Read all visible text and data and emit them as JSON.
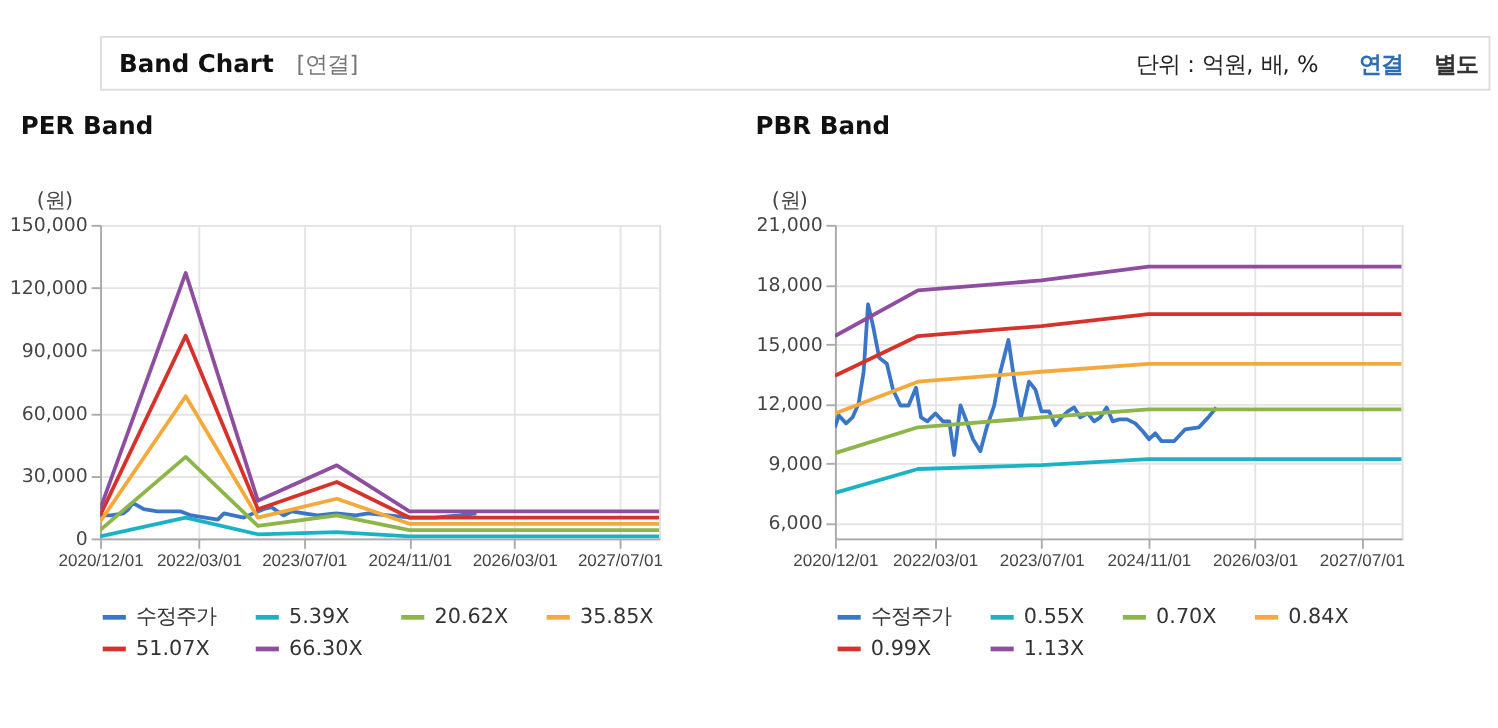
{
  "chart_data": [
    {
      "type": "line",
      "title": "PER Band",
      "ylabel": "(원)",
      "annotations": [
        "Band Chart",
        "[연결]",
        "단위 : 억원, 배, %",
        "연결",
        "별도"
      ],
      "xlim": [
        "2020-12-01",
        "2028-01-01"
      ],
      "xticks": [
        {
          "value": "2020-12-01",
          "label": "2020/12/01"
        },
        {
          "value": "2022-03-01",
          "label": "2022/03/01"
        },
        {
          "value": "2023-07-01",
          "label": "2023/07/01"
        },
        {
          "value": "2024-11-01",
          "label": "2024/11/01"
        },
        {
          "value": "2026-03-01",
          "label": "2026/03/01"
        },
        {
          "value": "2027-07-01",
          "label": "2027/07/01"
        }
      ],
      "ylim": [
        0,
        150000
      ],
      "yticks": [
        0,
        {
          "value": 30000,
          "label": "30,000"
        },
        {
          "value": 60000,
          "label": "60,000"
        },
        {
          "value": 90000,
          "label": "90,000"
        },
        {
          "value": 120000,
          "label": "120,000"
        },
        {
          "value": 150000,
          "label": "150,000"
        }
      ],
      "grid": true,
      "legend": "bottom",
      "line_style": "solid",
      "series": [
        {
          "name": "수정주가",
          "color": "#3a76c8",
          "x": [
            "2020-12-01",
            "2021-01-21",
            "2021-03-19",
            "2021-04-11",
            "2021-05-01",
            "2021-06-21",
            "2021-08-23",
            "2021-12-06",
            "2022-01-27",
            "2022-05-29",
            "2022-06-27",
            "2022-09-26",
            "2022-12-26",
            "2023-02-01",
            "2023-03-30",
            "2023-05-06",
            "2023-07-02",
            "2023-09-03",
            "2023-11-28",
            "2024-02-27",
            "2024-04-24",
            "2024-07-27",
            "2024-11-04",
            "2024-12-31",
            "2025-02-26",
            "2025-06-20",
            "2025-09-07"
          ],
          "values": [
            11000,
            11000,
            12000,
            14000,
            17000,
            14000,
            13000,
            13000,
            11000,
            9000,
            12000,
            10000,
            14000,
            15000,
            11000,
            13000,
            12000,
            11000,
            12000,
            11000,
            12000,
            11000,
            10000,
            10000,
            10000,
            11000,
            12000
          ]
        },
        {
          "name": "5.39X",
          "color": "#1bb3c4",
          "x": [
            "2020-12-01",
            "2022-01-01",
            "2022-12-01",
            "2023-12-01",
            "2024-11-01",
            "2028-01-01"
          ],
          "values": [
            1000,
            10000,
            2000,
            3000,
            1000,
            1000
          ]
        },
        {
          "name": "20.62X",
          "color": "#8db54a",
          "x": [
            "2020-12-01",
            "2022-01-01",
            "2022-12-01",
            "2023-12-01",
            "2024-11-01",
            "2028-01-01"
          ],
          "values": [
            4000,
            39000,
            6000,
            11000,
            4000,
            4000
          ]
        },
        {
          "name": "35.85X",
          "color": "#f5a93a",
          "x": [
            "2020-12-01",
            "2022-01-01",
            "2022-12-01",
            "2023-12-01",
            "2024-11-01",
            "2028-01-01"
          ],
          "values": [
            8000,
            68000,
            10000,
            19000,
            7000,
            7000
          ]
        },
        {
          "name": "51.07X",
          "color": "#d6322b",
          "x": [
            "2020-12-01",
            "2022-01-01",
            "2022-12-01",
            "2023-12-01",
            "2024-11-01",
            "2028-01-01"
          ],
          "values": [
            11000,
            97000,
            14000,
            27000,
            10000,
            10000
          ]
        },
        {
          "name": "66.30X",
          "color": "#8e4d9e",
          "x": [
            "2020-12-01",
            "2022-01-01",
            "2022-12-01",
            "2023-12-01",
            "2024-11-01",
            "2028-01-01"
          ],
          "values": [
            14000,
            127000,
            18000,
            35000,
            13000,
            13000
          ]
        }
      ]
    },
    {
      "type": "line",
      "title": "PBR Band",
      "ylabel": "(원)",
      "xlim": [
        "2020-12-01",
        "2028-01-01"
      ],
      "xticks": [
        {
          "value": "2020-12-01",
          "label": "2020/12/01"
        },
        {
          "value": "2022-03-01",
          "label": "2022/03/01"
        },
        {
          "value": "2023-07-01",
          "label": "2023/07/01"
        },
        {
          "value": "2024-11-01",
          "label": "2024/11/01"
        },
        {
          "value": "2026-03-01",
          "label": "2026/03/01"
        },
        {
          "value": "2027-07-01",
          "label": "2027/07/01"
        }
      ],
      "ylim": [
        5200,
        21000
      ],
      "yticks": [
        {
          "value": 6000,
          "label": "6,000"
        },
        {
          "value": 9000,
          "label": "9,000"
        },
        {
          "value": 12000,
          "label": "12,000"
        },
        {
          "value": 15000,
          "label": "15,000"
        },
        {
          "value": 18000,
          "label": "18,000"
        },
        {
          "value": 21000,
          "label": "21,000"
        }
      ],
      "grid": true,
      "legend": "bottom",
      "line_style": "solid",
      "series": [
        {
          "name": "수정주가",
          "color": "#3a76c8",
          "x": [
            "2020-12-01",
            "2020-12-18",
            "2021-01-21",
            "2021-02-19",
            "2021-03-19",
            "2021-04-11",
            "2021-05-01",
            "2021-05-24",
            "2021-06-21",
            "2021-07-26",
            "2021-08-23",
            "2021-09-26",
            "2021-11-02",
            "2021-12-06",
            "2021-12-29",
            "2022-01-27",
            "2022-03-05",
            "2022-04-08",
            "2022-05-07",
            "2022-05-29",
            "2022-06-27",
            "2022-07-25",
            "2022-08-23",
            "2022-09-26",
            "2022-10-25",
            "2022-11-28",
            "2022-12-26",
            "2023-02-01",
            "2023-03-02",
            "2023-03-30",
            "2023-05-06",
            "2023-06-04",
            "2023-07-02",
            "2023-08-06",
            "2023-09-03",
            "2023-10-02",
            "2023-10-30",
            "2023-11-28",
            "2023-12-26",
            "2024-01-29",
            "2024-02-27",
            "2024-03-26",
            "2024-04-24",
            "2024-05-22",
            "2024-06-20",
            "2024-07-27",
            "2024-09-02",
            "2024-10-06",
            "2024-11-04",
            "2024-12-02",
            "2024-12-31",
            "2025-02-26",
            "2025-04-18",
            "2025-06-20",
            "2025-08-01",
            "2025-09-07"
          ],
          "values": [
            10800,
            11400,
            11000,
            11300,
            12000,
            13600,
            17000,
            15900,
            14300,
            14000,
            12700,
            11900,
            11900,
            12800,
            11300,
            11100,
            11500,
            11100,
            11100,
            9400,
            11900,
            11100,
            10200,
            9600,
            10800,
            11900,
            13600,
            15200,
            13000,
            11300,
            13100,
            12700,
            11600,
            11600,
            10900,
            11300,
            11600,
            11800,
            11300,
            11500,
            11100,
            11300,
            11800,
            11100,
            11200,
            11200,
            11000,
            10600,
            10200,
            10500,
            10100,
            10100,
            10700,
            10800,
            11300,
            11800
          ]
        },
        {
          "name": "0.55X",
          "color": "#1bb3c4",
          "x": [
            "2020-12-01",
            "2021-12-15",
            "2023-07-01",
            "2024-11-01",
            "2028-01-01"
          ],
          "values": [
            7500,
            8700,
            8900,
            9200,
            9200
          ]
        },
        {
          "name": "0.70X",
          "color": "#8db54a",
          "x": [
            "2020-12-01",
            "2021-12-15",
            "2023-07-01",
            "2024-11-01",
            "2028-01-01"
          ],
          "values": [
            9500,
            10800,
            11300,
            11700,
            11700
          ]
        },
        {
          "name": "0.84X",
          "color": "#f5a93a",
          "x": [
            "2020-12-01",
            "2021-12-15",
            "2023-07-01",
            "2024-11-01",
            "2028-01-01"
          ],
          "values": [
            11500,
            13100,
            13600,
            14000,
            14000
          ]
        },
        {
          "name": "0.99X",
          "color": "#d6322b",
          "x": [
            "2020-12-01",
            "2021-12-15",
            "2023-07-01",
            "2024-11-01",
            "2028-01-01"
          ],
          "values": [
            13400,
            15400,
            15900,
            16500,
            16500
          ]
        },
        {
          "name": "1.13X",
          "color": "#8e4d9e",
          "x": [
            "2020-12-01",
            "2021-12-15",
            "2023-07-01",
            "2024-11-01",
            "2028-01-01"
          ],
          "values": [
            15400,
            17700,
            18200,
            18900,
            18900
          ]
        }
      ]
    }
  ]
}
